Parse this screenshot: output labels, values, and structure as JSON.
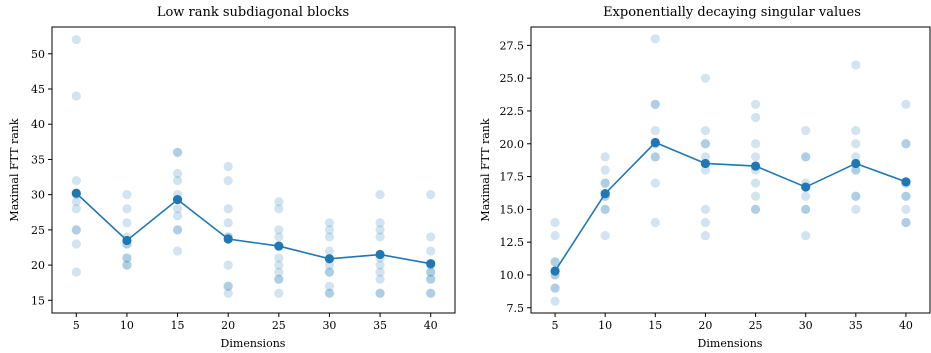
{
  "chart_data": [
    {
      "type": "scatter",
      "title": "Low rank subdiagonal blocks",
      "xlabel": "Dimensions",
      "ylabel": "Maximal FTT rank",
      "x_ticks": [
        5,
        10,
        15,
        20,
        25,
        30,
        35,
        40
      ],
      "y_ticks": [
        "15",
        "20",
        "25",
        "30",
        "35",
        "40",
        "45",
        "50"
      ],
      "xlim": [
        2.6,
        42.4
      ],
      "ylim": [
        13.2,
        53.8
      ],
      "grid": false,
      "series": [
        {
          "kind": "raw-samples",
          "color": "#1f77b4",
          "points": [
            {
              "x": 5,
              "ys": [
                52,
                44,
                32,
                30,
                29,
                28,
                25,
                25,
                23,
                19
              ]
            },
            {
              "x": 10,
              "ys": [
                30,
                28,
                26,
                24,
                23,
                23,
                21,
                21,
                20,
                20
              ]
            },
            {
              "x": 15,
              "ys": [
                36,
                36,
                33,
                32,
                30,
                28,
                27,
                25,
                25,
                22
              ]
            },
            {
              "x": 20,
              "ys": [
                34,
                32,
                28,
                26,
                24,
                24,
                20,
                17,
                17,
                16
              ]
            },
            {
              "x": 25,
              "ys": [
                29,
                28,
                25,
                24,
                21,
                20,
                19,
                18,
                18,
                16
              ]
            },
            {
              "x": 30,
              "ys": [
                26,
                25,
                24,
                22,
                20,
                19,
                19,
                17,
                16,
                16
              ]
            },
            {
              "x": 35,
              "ys": [
                30,
                26,
                25,
                24,
                21,
                20,
                19,
                18,
                16,
                16
              ]
            },
            {
              "x": 40,
              "ys": [
                30,
                24,
                22,
                20,
                19,
                19,
                18,
                18,
                16,
                16
              ]
            }
          ]
        },
        {
          "kind": "mean",
          "color": "#1f77b4",
          "x": [
            5,
            10,
            15,
            20,
            25,
            30,
            35,
            40
          ],
          "values": [
            30.2,
            23.5,
            29.3,
            23.7,
            22.7,
            20.9,
            21.5,
            20.2
          ]
        }
      ]
    },
    {
      "type": "scatter",
      "title": "Exponentially decaying singular values",
      "xlabel": "Dimensions",
      "ylabel": "Maximal FTT rank",
      "x_ticks": [
        5,
        10,
        15,
        20,
        25,
        30,
        35,
        40
      ],
      "y_ticks": [
        "7.5",
        "10.0",
        "12.5",
        "15.0",
        "17.5",
        "20.0",
        "22.5",
        "25.0",
        "27.5"
      ],
      "xlim": [
        2.6,
        42.4
      ],
      "ylim": [
        7.1,
        28.9
      ],
      "grid": false,
      "series": [
        {
          "kind": "raw-samples",
          "color": "#1f77b4",
          "points": [
            {
              "x": 5,
              "ys": [
                14,
                13,
                11,
                11,
                10,
                10,
                9,
                9,
                8
              ]
            },
            {
              "x": 10,
              "ys": [
                19,
                18,
                17,
                17,
                16,
                16,
                15,
                15,
                13
              ]
            },
            {
              "x": 15,
              "ys": [
                28,
                23,
                23,
                21,
                20,
                20,
                19,
                19,
                17,
                14
              ]
            },
            {
              "x": 20,
              "ys": [
                25,
                21,
                20,
                20,
                19,
                18,
                15,
                14,
                13
              ]
            },
            {
              "x": 25,
              "ys": [
                23,
                22,
                20,
                19,
                18,
                17,
                16,
                15,
                15
              ]
            },
            {
              "x": 30,
              "ys": [
                21,
                19,
                19,
                17,
                16,
                15,
                15,
                13
              ]
            },
            {
              "x": 35,
              "ys": [
                26,
                21,
                20,
                19,
                18,
                18,
                16,
                16,
                15
              ]
            },
            {
              "x": 40,
              "ys": [
                23,
                20,
                20,
                17,
                17,
                16,
                16,
                15,
                14,
                14
              ]
            }
          ]
        },
        {
          "kind": "mean",
          "color": "#1f77b4",
          "x": [
            5,
            10,
            15,
            20,
            25,
            30,
            35,
            40
          ],
          "values": [
            10.3,
            16.2,
            20.1,
            18.5,
            18.3,
            16.7,
            18.5,
            17.1
          ]
        }
      ]
    }
  ]
}
